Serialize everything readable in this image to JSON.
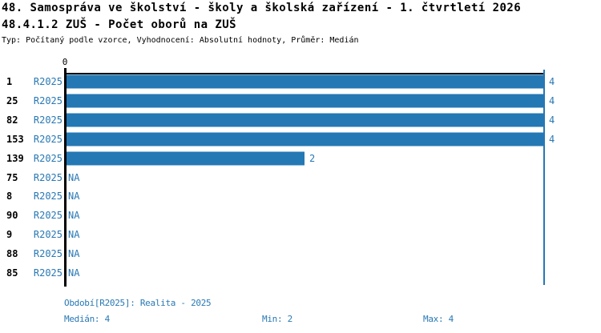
{
  "page": {
    "title_line1": "48. Samospráva ve školství - školy a školská zařízení - 1. čtvrtletí 2026",
    "title_line2": "48.4.1.2 ZUŠ - Počet oborů na ZUŠ",
    "subtitle": "Typ: Počítaný podle vzorce, Vyhodnocení: Absolutní hodnoty, Průměr: Medián"
  },
  "chart_data": {
    "type": "bar",
    "orientation": "horizontal",
    "title": "48.4.1.2 ZUŠ - Počet oborů na ZUŠ",
    "categories": [
      "1",
      "25",
      "82",
      "153",
      "139",
      "75",
      "8",
      "90",
      "9",
      "88",
      "85"
    ],
    "series": [
      {
        "name": "R2025",
        "values": [
          4,
          4,
          4,
          4,
          2,
          null,
          null,
          null,
          null,
          null,
          null
        ]
      }
    ],
    "period_label": "R2025",
    "na_label": "NA",
    "xlim": [
      0,
      4
    ],
    "x_ticks": [
      {
        "value": 0,
        "label": "0"
      }
    ],
    "reference_line_value": 4,
    "grid": false,
    "legend": false,
    "colors": {
      "bar": "#2478B4",
      "blue_text": "#2878B4",
      "axis": "#000000"
    },
    "stats": {
      "median": 4,
      "min": 2,
      "max": 4
    }
  },
  "footer": {
    "period_info": "Období[R2025]: Realita - 2025",
    "median_label": "Medián: 4",
    "min_label": "Min: 2",
    "max_label": "Max: 4"
  }
}
